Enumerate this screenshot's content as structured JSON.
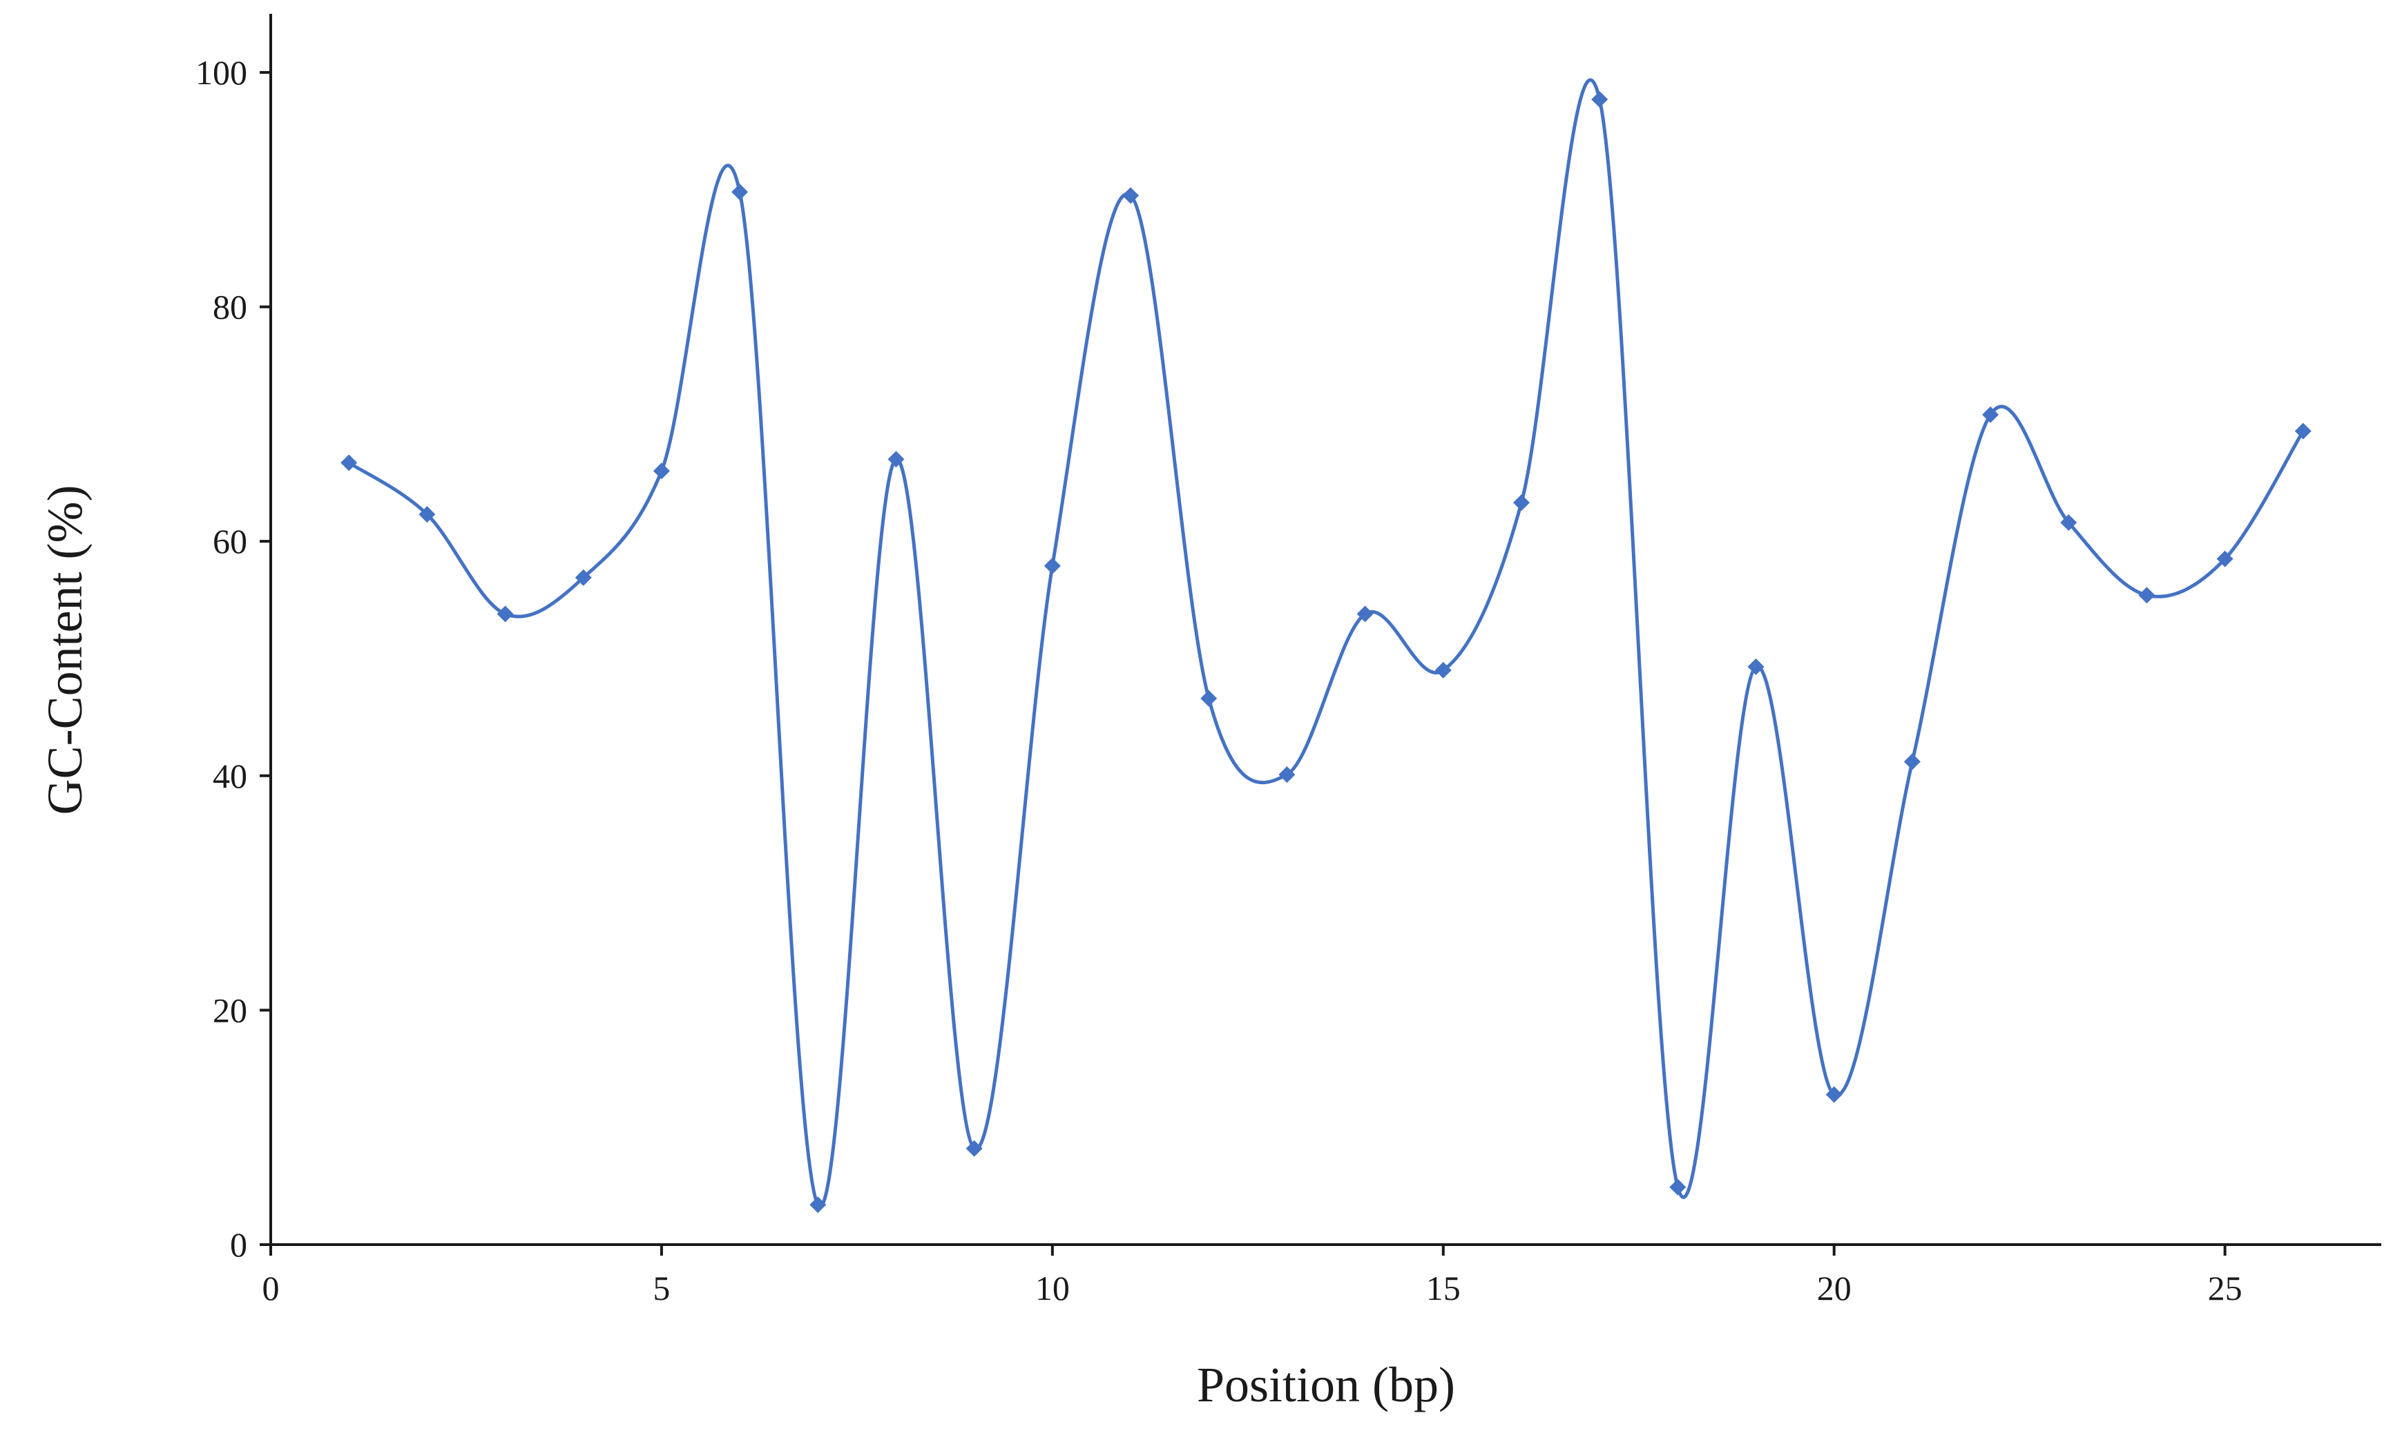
{
  "chart_data": {
    "type": "line",
    "title": "",
    "xlabel": "Position (bp)",
    "ylabel": "GC-Content (%)",
    "xlim": [
      0,
      27
    ],
    "ylim": [
      0,
      105
    ],
    "xticks": [
      0,
      5,
      10,
      15,
      20,
      25
    ],
    "yticks": [
      0,
      20,
      40,
      60,
      80,
      100
    ],
    "grid": false,
    "legend": "none",
    "smooth": true,
    "marker": "diamond",
    "color": "#4472C4",
    "series": [
      {
        "x": [
          1,
          2,
          3,
          4,
          5,
          6,
          7,
          8,
          9,
          10,
          11,
          12,
          13,
          14,
          15,
          16,
          17,
          18,
          19,
          20,
          21,
          22,
          23,
          24,
          25,
          26
        ],
        "y": [
          66.7,
          62.3,
          53.8,
          56.9,
          66.0,
          89.8,
          3.4,
          67.0,
          8.2,
          57.9,
          89.5,
          46.6,
          40.1,
          53.8,
          49.0,
          63.3,
          97.7,
          4.9,
          49.3,
          12.8,
          41.2,
          70.8,
          61.6,
          55.4,
          58.5,
          69.4
        ]
      }
    ]
  }
}
